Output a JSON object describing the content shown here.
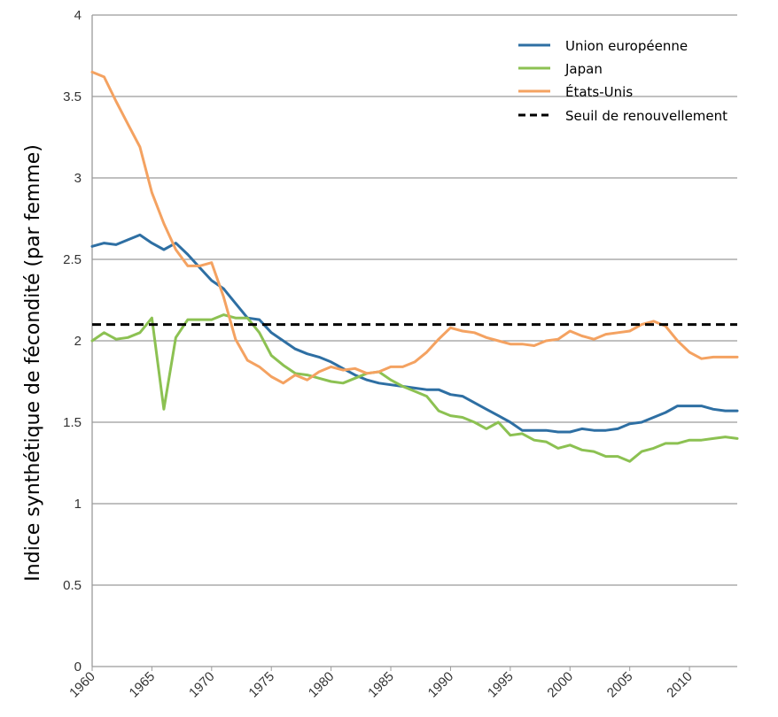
{
  "chart_data": {
    "type": "line",
    "title": "",
    "xlabel": "",
    "ylabel": "Indice synthétique de fécondité (par femme)",
    "xlim": [
      1960,
      2014
    ],
    "ylim": [
      0,
      4
    ],
    "x_ticks": [
      "1960",
      "1965",
      "1970",
      "1975",
      "1980",
      "1985",
      "1990",
      "1995",
      "2000",
      "2005",
      "2010"
    ],
    "y_ticks": [
      "0",
      "0.5",
      "1",
      "1.5",
      "2",
      "2.5",
      "3",
      "3.5",
      "4"
    ],
    "grid": "horizontal",
    "legend_position": "top-right",
    "x": [
      1960,
      1961,
      1962,
      1963,
      1964,
      1965,
      1966,
      1967,
      1968,
      1969,
      1970,
      1971,
      1972,
      1973,
      1974,
      1975,
      1976,
      1977,
      1978,
      1979,
      1980,
      1981,
      1982,
      1983,
      1984,
      1985,
      1986,
      1987,
      1988,
      1989,
      1990,
      1991,
      1992,
      1993,
      1994,
      1995,
      1996,
      1997,
      1998,
      1999,
      2000,
      2001,
      2002,
      2003,
      2004,
      2005,
      2006,
      2007,
      2008,
      2009,
      2010,
      2011,
      2012,
      2013,
      2014
    ],
    "series": [
      {
        "name": "Union européenne",
        "color": "#2e6fa3",
        "values": [
          2.58,
          2.6,
          2.59,
          2.62,
          2.65,
          2.6,
          2.56,
          2.6,
          2.53,
          2.45,
          2.37,
          2.32,
          2.23,
          2.14,
          2.13,
          2.05,
          2.0,
          1.95,
          1.92,
          1.9,
          1.87,
          1.83,
          1.79,
          1.76,
          1.74,
          1.73,
          1.72,
          1.71,
          1.7,
          1.7,
          1.67,
          1.66,
          1.62,
          1.58,
          1.54,
          1.5,
          1.45,
          1.45,
          1.45,
          1.44,
          1.44,
          1.46,
          1.45,
          1.45,
          1.46,
          1.49,
          1.5,
          1.53,
          1.56,
          1.6,
          1.6,
          1.6,
          1.58,
          1.57,
          1.57
        ]
      },
      {
        "name": "Japan",
        "color": "#8cc152",
        "values": [
          2.0,
          2.05,
          2.01,
          2.02,
          2.05,
          2.14,
          1.58,
          2.02,
          2.13,
          2.13,
          2.13,
          2.16,
          2.14,
          2.14,
          2.05,
          1.91,
          1.85,
          1.8,
          1.79,
          1.77,
          1.75,
          1.74,
          1.77,
          1.8,
          1.81,
          1.76,
          1.72,
          1.69,
          1.66,
          1.57,
          1.54,
          1.53,
          1.5,
          1.46,
          1.5,
          1.42,
          1.43,
          1.39,
          1.38,
          1.34,
          1.36,
          1.33,
          1.32,
          1.29,
          1.29,
          1.26,
          1.32,
          1.34,
          1.37,
          1.37,
          1.39,
          1.39,
          1.4,
          1.41,
          1.4
        ]
      },
      {
        "name": "États-Unis",
        "color": "#f4a261",
        "values": [
          3.65,
          3.62,
          3.47,
          3.33,
          3.19,
          2.91,
          2.72,
          2.56,
          2.46,
          2.46,
          2.48,
          2.27,
          2.01,
          1.88,
          1.84,
          1.78,
          1.74,
          1.79,
          1.76,
          1.81,
          1.84,
          1.82,
          1.83,
          1.8,
          1.81,
          1.84,
          1.84,
          1.87,
          1.93,
          2.01,
          2.08,
          2.06,
          2.05,
          2.02,
          2.0,
          1.98,
          1.98,
          1.97,
          2.0,
          2.01,
          2.06,
          2.03,
          2.01,
          2.04,
          2.05,
          2.06,
          2.1,
          2.12,
          2.09,
          2.0,
          1.93,
          1.89,
          1.9,
          1.9,
          1.9
        ]
      }
    ],
    "reference_line": {
      "name": "Seuil de renouvellement",
      "value": 2.1,
      "color": "#000000",
      "style": "dashed"
    }
  }
}
